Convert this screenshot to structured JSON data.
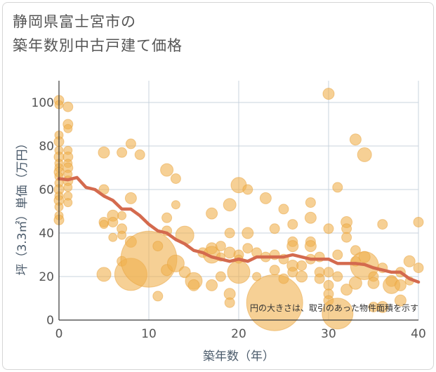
{
  "title": {
    "line1": "静岡県富士宮市の",
    "line2": "築年数別中古戸建て価格"
  },
  "colors": {
    "bubble": "#f0b04f",
    "bubble_stroke": "#e8a23c",
    "line": "#d46a4e",
    "grid": "#c9d3dd",
    "axis": "#3a3a3a"
  },
  "chart_data": {
    "type": "scatter",
    "xlabel": "築年数（年）",
    "ylabel": "坪（3.3㎡）単価（万円）",
    "xlim": [
      0,
      40
    ],
    "ylim": [
      0,
      110
    ],
    "x_ticks": [
      0,
      10,
      20,
      30,
      40
    ],
    "y_ticks": [
      0,
      20,
      40,
      60,
      80,
      100
    ],
    "grid": true,
    "note": "円の大きさは、取引のあった物件面積を示す",
    "bubble_series": [
      {
        "x": 0,
        "y": 101,
        "r": 7
      },
      {
        "x": 0,
        "y": 99,
        "r": 6
      },
      {
        "x": 0,
        "y": 85,
        "r": 6
      },
      {
        "x": 0,
        "y": 82,
        "r": 7
      },
      {
        "x": 0,
        "y": 78,
        "r": 6
      },
      {
        "x": 0,
        "y": 75,
        "r": 7
      },
      {
        "x": 0,
        "y": 72,
        "r": 6
      },
      {
        "x": 0,
        "y": 70,
        "r": 6
      },
      {
        "x": 0,
        "y": 68,
        "r": 7
      },
      {
        "x": 0,
        "y": 66,
        "r": 6
      },
      {
        "x": 0,
        "y": 63,
        "r": 6
      },
      {
        "x": 0,
        "y": 60,
        "r": 7
      },
      {
        "x": 0,
        "y": 57,
        "r": 6
      },
      {
        "x": 0,
        "y": 55,
        "r": 7
      },
      {
        "x": 0,
        "y": 52,
        "r": 6
      },
      {
        "x": 0,
        "y": 48,
        "r": 6
      },
      {
        "x": 0,
        "y": 46,
        "r": 7
      },
      {
        "x": 1,
        "y": 98,
        "r": 7
      },
      {
        "x": 1,
        "y": 90,
        "r": 7
      },
      {
        "x": 1,
        "y": 88,
        "r": 6
      },
      {
        "x": 1,
        "y": 78,
        "r": 6
      },
      {
        "x": 1,
        "y": 75,
        "r": 7
      },
      {
        "x": 1,
        "y": 72,
        "r": 6
      },
      {
        "x": 1,
        "y": 70,
        "r": 7
      },
      {
        "x": 1,
        "y": 67,
        "r": 6
      },
      {
        "x": 1,
        "y": 64,
        "r": 7
      },
      {
        "x": 1,
        "y": 61,
        "r": 6
      },
      {
        "x": 1,
        "y": 57,
        "r": 6
      },
      {
        "x": 1,
        "y": 54,
        "r": 6
      },
      {
        "x": 5,
        "y": 77,
        "r": 8
      },
      {
        "x": 5,
        "y": 60,
        "r": 7
      },
      {
        "x": 5,
        "y": 45,
        "r": 7
      },
      {
        "x": 5,
        "y": 44,
        "r": 6
      },
      {
        "x": 5,
        "y": 21,
        "r": 10
      },
      {
        "x": 6,
        "y": 48,
        "r": 8
      },
      {
        "x": 6,
        "y": 45,
        "r": 7
      },
      {
        "x": 6,
        "y": 38,
        "r": 6
      },
      {
        "x": 7,
        "y": 77,
        "r": 7
      },
      {
        "x": 7,
        "y": 48,
        "r": 6
      },
      {
        "x": 7,
        "y": 42,
        "r": 7
      },
      {
        "x": 7,
        "y": 39,
        "r": 6
      },
      {
        "x": 7,
        "y": 27,
        "r": 7
      },
      {
        "x": 8,
        "y": 81,
        "r": 7
      },
      {
        "x": 8,
        "y": 56,
        "r": 8
      },
      {
        "x": 8,
        "y": 36,
        "r": 8
      },
      {
        "x": 8,
        "y": 21,
        "r": 23
      },
      {
        "x": 9,
        "y": 76,
        "r": 7
      },
      {
        "x": 10,
        "y": 28,
        "r": 40
      },
      {
        "x": 11,
        "y": 34,
        "r": 7
      },
      {
        "x": 11,
        "y": 11,
        "r": 7
      },
      {
        "x": 12,
        "y": 69,
        "r": 9
      },
      {
        "x": 12,
        "y": 47,
        "r": 7
      },
      {
        "x": 12,
        "y": 41,
        "r": 7
      },
      {
        "x": 12,
        "y": 23,
        "r": 8
      },
      {
        "x": 13,
        "y": 65,
        "r": 7
      },
      {
        "x": 13,
        "y": 26,
        "r": 12
      },
      {
        "x": 13,
        "y": 53,
        "r": 6
      },
      {
        "x": 14,
        "y": 39,
        "r": 13
      },
      {
        "x": 14,
        "y": 22,
        "r": 8
      },
      {
        "x": 15,
        "y": 18,
        "r": 12
      },
      {
        "x": 15,
        "y": 16,
        "r": 8
      },
      {
        "x": 16,
        "y": 31,
        "r": 7
      },
      {
        "x": 17,
        "y": 49,
        "r": 8
      },
      {
        "x": 17,
        "y": 33,
        "r": 8
      },
      {
        "x": 17,
        "y": 30,
        "r": 12
      },
      {
        "x": 17,
        "y": 16,
        "r": 8
      },
      {
        "x": 18,
        "y": 34,
        "r": 7
      },
      {
        "x": 18,
        "y": 29,
        "r": 6
      },
      {
        "x": 18,
        "y": 20,
        "r": 7
      },
      {
        "x": 19,
        "y": 53,
        "r": 9
      },
      {
        "x": 19,
        "y": 40,
        "r": 7
      },
      {
        "x": 19,
        "y": 31,
        "r": 8
      },
      {
        "x": 19,
        "y": 12,
        "r": 8
      },
      {
        "x": 19,
        "y": 8,
        "r": 7
      },
      {
        "x": 20,
        "y": 62,
        "r": 11
      },
      {
        "x": 20,
        "y": 30,
        "r": 7
      },
      {
        "x": 20,
        "y": 28,
        "r": 6
      },
      {
        "x": 20,
        "y": 22,
        "r": 16
      },
      {
        "x": 21,
        "y": 60,
        "r": 7
      },
      {
        "x": 21,
        "y": 40,
        "r": 8
      },
      {
        "x": 21,
        "y": 33,
        "r": 7
      },
      {
        "x": 22,
        "y": 31,
        "r": 7
      },
      {
        "x": 22,
        "y": 20,
        "r": 6
      },
      {
        "x": 23,
        "y": 56,
        "r": 8
      },
      {
        "x": 23,
        "y": 29,
        "r": 7
      },
      {
        "x": 24,
        "y": 42,
        "r": 7
      },
      {
        "x": 24,
        "y": 30,
        "r": 7
      },
      {
        "x": 24,
        "y": 23,
        "r": 7
      },
      {
        "x": 24,
        "y": 8,
        "r": 40
      },
      {
        "x": 25,
        "y": 51,
        "r": 7
      },
      {
        "x": 25,
        "y": 28,
        "r": 7
      },
      {
        "x": 25,
        "y": 19,
        "r": 7
      },
      {
        "x": 26,
        "y": 44,
        "r": 7
      },
      {
        "x": 26,
        "y": 36,
        "r": 7
      },
      {
        "x": 26,
        "y": 34,
        "r": 8
      },
      {
        "x": 26,
        "y": 25,
        "r": 8
      },
      {
        "x": 26,
        "y": 22,
        "r": 7
      },
      {
        "x": 27,
        "y": 25,
        "r": 7
      },
      {
        "x": 27,
        "y": 20,
        "r": 8
      },
      {
        "x": 28,
        "y": 54,
        "r": 7
      },
      {
        "x": 28,
        "y": 47,
        "r": 8
      },
      {
        "x": 28,
        "y": 36,
        "r": 7
      },
      {
        "x": 28,
        "y": 34,
        "r": 8
      },
      {
        "x": 28,
        "y": 28,
        "r": 7
      },
      {
        "x": 29,
        "y": 29,
        "r": 7
      },
      {
        "x": 29,
        "y": 22,
        "r": 7
      },
      {
        "x": 29,
        "y": 19,
        "r": 7
      },
      {
        "x": 30,
        "y": 104,
        "r": 8
      },
      {
        "x": 30,
        "y": 42,
        "r": 7
      },
      {
        "x": 30,
        "y": 22,
        "r": 7
      },
      {
        "x": 30,
        "y": 16,
        "r": 7
      },
      {
        "x": 30,
        "y": 12,
        "r": 7
      },
      {
        "x": 30,
        "y": 9,
        "r": 7
      },
      {
        "x": 31,
        "y": 61,
        "r": 7
      },
      {
        "x": 31,
        "y": 30,
        "r": 7
      },
      {
        "x": 31,
        "y": 20,
        "r": 7
      },
      {
        "x": 31,
        "y": 3,
        "r": 22
      },
      {
        "x": 32,
        "y": 45,
        "r": 8
      },
      {
        "x": 32,
        "y": 42,
        "r": 7
      },
      {
        "x": 32,
        "y": 38,
        "r": 7
      },
      {
        "x": 32,
        "y": 14,
        "r": 8
      },
      {
        "x": 33,
        "y": 83,
        "r": 8
      },
      {
        "x": 33,
        "y": 32,
        "r": 7
      },
      {
        "x": 33,
        "y": 27,
        "r": 7
      },
      {
        "x": 33,
        "y": 17,
        "r": 9
      },
      {
        "x": 34,
        "y": 76,
        "r": 10
      },
      {
        "x": 34,
        "y": 25,
        "r": 20
      },
      {
        "x": 34,
        "y": 29,
        "r": 8
      },
      {
        "x": 35,
        "y": 20,
        "r": 7
      },
      {
        "x": 35,
        "y": 17,
        "r": 8
      },
      {
        "x": 35,
        "y": 6,
        "r": 7
      },
      {
        "x": 36,
        "y": 44,
        "r": 7
      },
      {
        "x": 36,
        "y": 24,
        "r": 7
      },
      {
        "x": 36,
        "y": 6,
        "r": 8
      },
      {
        "x": 37,
        "y": 18,
        "r": 8
      },
      {
        "x": 37,
        "y": 16,
        "r": 12
      },
      {
        "x": 38,
        "y": 16,
        "r": 8
      },
      {
        "x": 38,
        "y": 22,
        "r": 7
      },
      {
        "x": 38,
        "y": 9,
        "r": 8
      },
      {
        "x": 39,
        "y": 27,
        "r": 8
      },
      {
        "x": 39,
        "y": 18,
        "r": 6
      },
      {
        "x": 40,
        "y": 45,
        "r": 7
      },
      {
        "x": 40,
        "y": 24,
        "r": 7
      }
    ],
    "trend_line": {
      "x": [
        0,
        1,
        2,
        3,
        4,
        5,
        6,
        7,
        8,
        9,
        10,
        11,
        12,
        13,
        14,
        15,
        16,
        17,
        18,
        19,
        20,
        21,
        22,
        23,
        24,
        25,
        26,
        27,
        28,
        29,
        30,
        31,
        32,
        33,
        34,
        35,
        36,
        37,
        38,
        39,
        40
      ],
      "y": [
        65,
        64.5,
        65.5,
        61,
        60,
        57,
        55,
        51,
        51,
        48,
        44,
        41,
        40,
        37,
        35,
        32,
        31,
        29,
        28,
        27,
        28,
        27,
        29,
        29,
        29,
        29,
        30,
        29,
        28,
        28,
        28,
        26,
        26,
        26,
        25.5,
        24,
        23,
        22,
        22,
        19,
        17.5
      ]
    }
  }
}
